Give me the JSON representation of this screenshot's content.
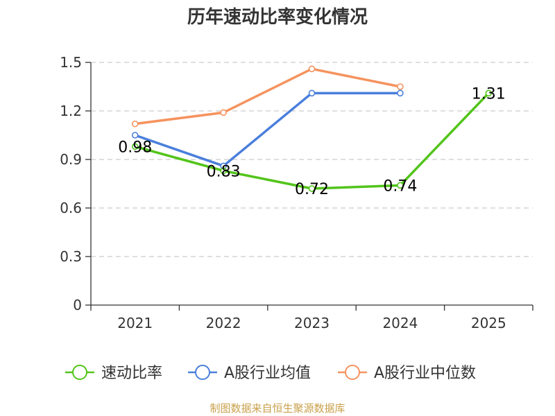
{
  "chart_data": {
    "type": "line",
    "title": "历年速动比率变化情况",
    "xlabel": "",
    "ylabel": "",
    "categories": [
      "2021",
      "2022",
      "2023",
      "2024",
      "2025"
    ],
    "ylim": [
      0,
      1.5
    ],
    "yticks": [
      "0",
      "0.3",
      "0.6",
      "0.9",
      "1.2",
      "1.5"
    ],
    "grid": true,
    "legend_position": "bottom",
    "series": [
      {
        "name": "速动比率",
        "color": "#52c41a",
        "values": [
          0.98,
          0.83,
          0.72,
          0.74,
          1.31
        ],
        "labels": [
          "0.98",
          "0.83",
          "0.72",
          "0.74",
          "1.31"
        ]
      },
      {
        "name": "A股行业均值",
        "color": "#4a7fdc",
        "values": [
          1.05,
          0.86,
          1.31,
          1.31,
          null
        ]
      },
      {
        "name": "A股行业中位数",
        "color": "#f5935e",
        "values": [
          1.12,
          1.19,
          1.46,
          1.35,
          null
        ]
      }
    ],
    "source": "制图数据来自恒生聚源数据库"
  }
}
